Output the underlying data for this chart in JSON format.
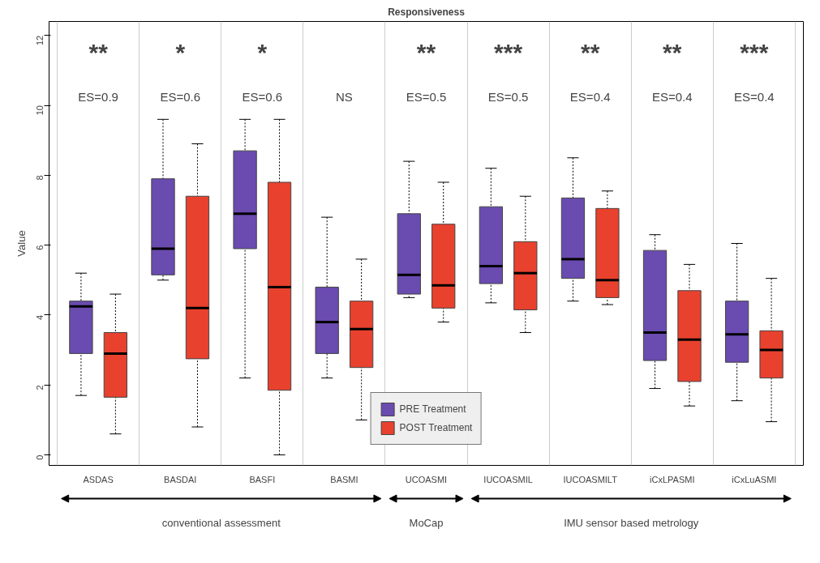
{
  "chart_data": {
    "type": "box",
    "title": "Responsiveness",
    "ylabel": "Value",
    "categories": [
      "ASDAS",
      "BASDAI",
      "BASFI",
      "BASMI",
      "UCOASMI",
      "IUCOASMIL",
      "IUCOASMILT",
      "iCxLPASMI",
      "iCxLuASMI"
    ],
    "series": [
      {
        "name": "PRE Treatment",
        "color": "#6a4bb0",
        "boxes": [
          {
            "low": 1.7,
            "q1": 2.9,
            "median": 4.25,
            "q3": 4.4,
            "high": 5.2
          },
          {
            "low": 5.0,
            "q1": 5.15,
            "median": 5.9,
            "q3": 7.9,
            "high": 9.6
          },
          {
            "low": 2.2,
            "q1": 5.9,
            "median": 6.9,
            "q3": 8.7,
            "high": 9.6
          },
          {
            "low": 2.2,
            "q1": 2.9,
            "median": 3.8,
            "q3": 4.8,
            "high": 6.8
          },
          {
            "low": 4.5,
            "q1": 4.6,
            "median": 5.15,
            "q3": 6.9,
            "high": 8.4
          },
          {
            "low": 4.35,
            "q1": 4.9,
            "median": 5.4,
            "q3": 7.1,
            "high": 8.2
          },
          {
            "low": 4.4,
            "q1": 5.05,
            "median": 5.6,
            "q3": 7.35,
            "high": 8.5
          },
          {
            "low": 1.9,
            "q1": 2.7,
            "median": 3.5,
            "q3": 5.85,
            "high": 6.3
          },
          {
            "low": 1.55,
            "q1": 2.65,
            "median": 3.45,
            "q3": 4.4,
            "high": 6.05
          }
        ]
      },
      {
        "name": "POST Treatment",
        "color": "#e8412e",
        "boxes": [
          {
            "low": 0.6,
            "q1": 1.65,
            "median": 2.9,
            "q3": 3.5,
            "high": 4.6
          },
          {
            "low": 0.8,
            "q1": 2.75,
            "median": 4.2,
            "q3": 7.4,
            "high": 8.9
          },
          {
            "low": 0.0,
            "q1": 1.85,
            "median": 4.8,
            "q3": 7.8,
            "high": 9.6
          },
          {
            "low": 1.0,
            "q1": 2.5,
            "median": 3.6,
            "q3": 4.4,
            "high": 5.6
          },
          {
            "low": 3.8,
            "q1": 4.2,
            "median": 4.85,
            "q3": 6.6,
            "high": 7.8
          },
          {
            "low": 3.5,
            "q1": 4.15,
            "median": 5.2,
            "q3": 6.1,
            "high": 7.4
          },
          {
            "low": 4.3,
            "q1": 4.5,
            "median": 5.0,
            "q3": 7.05,
            "high": 7.55
          },
          {
            "low": 1.4,
            "q1": 2.1,
            "median": 3.3,
            "q3": 4.7,
            "high": 5.45
          },
          {
            "low": 0.95,
            "q1": 2.2,
            "median": 3.0,
            "q3": 3.55,
            "high": 5.05
          }
        ]
      }
    ],
    "ylim": [
      -0.3,
      12.4
    ],
    "yticks": [
      0,
      2,
      4,
      6,
      8,
      10,
      12
    ],
    "grid": "x",
    "legend": "bottom",
    "annotations": [
      "**\nES=0.9",
      "*\nES=0.6",
      "*\nES=0.6",
      "NS",
      "**\nES=0.5",
      "***\nES=0.5",
      "**\nES=0.4",
      "**\nES=0.4",
      "***\nES=0.4",
      "conventional assessment",
      "MoCap",
      "IMU sensor based metrology"
    ]
  }
}
